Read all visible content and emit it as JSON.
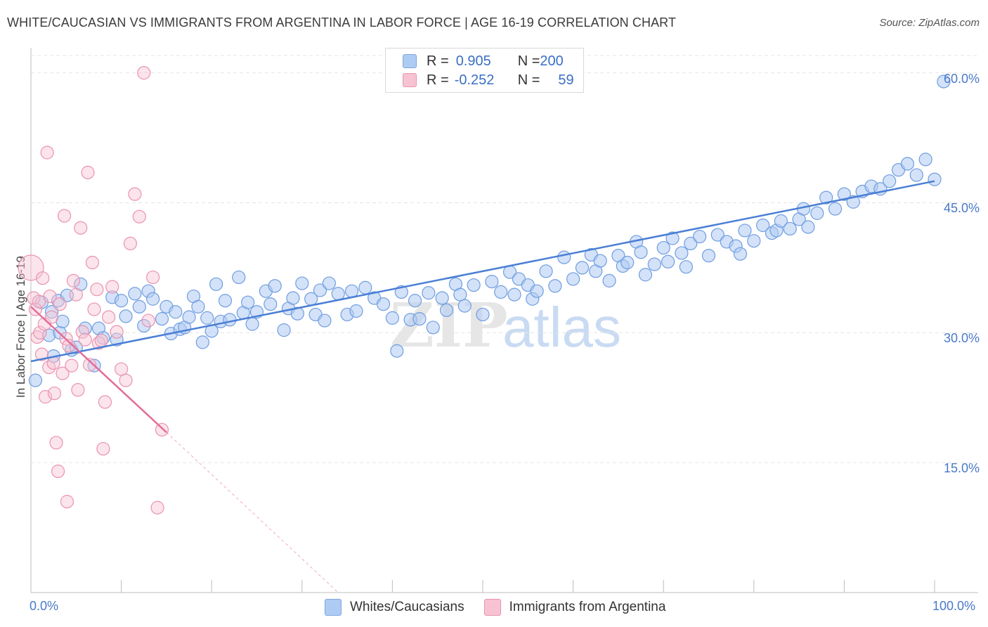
{
  "title": "WHITE/CAUCASIAN VS IMMIGRANTS FROM ARGENTINA IN LABOR FORCE | AGE 16-19 CORRELATION CHART",
  "source": "Source: ZipAtlas.com",
  "watermark": "ZIPatlas",
  "legend": {
    "rows": [
      {
        "r_label": "R = ",
        "r_value": "0.905",
        "n_label": "N = ",
        "n_value": "200",
        "color": "#a9c6f0"
      },
      {
        "r_label": "R = ",
        "r_value": "-0.252",
        "n_label": "N = ",
        "n_value": "59",
        "color": "#f5b8c9"
      }
    ]
  },
  "bottom_legend": [
    "Whites/Caucasians",
    "Immigrants from Argentina"
  ],
  "chart_data": {
    "type": "scatter",
    "ylabel": "In Labor Force | Age 16-19",
    "x_tick_labels": [
      "0.0%",
      "100.0%"
    ],
    "y_tick_labels": [
      "15.0%",
      "30.0%",
      "45.0%",
      "60.0%"
    ],
    "y_ticks": [
      15,
      30,
      45,
      60
    ],
    "xlim": [
      0,
      100
    ],
    "ylim": [
      0,
      62
    ],
    "grid": true,
    "colors": {
      "blue": "#4a7fd6",
      "blue_fill": "#aecbf3",
      "pink": "#e46e98",
      "pink_fill": "#f7c3d3",
      "axis_text": "#4a79c9"
    },
    "series": [
      {
        "name": "Whites/Caucasians",
        "trend": {
          "x": [
            0,
            100
          ],
          "y": [
            26.7,
            47.5
          ]
        },
        "points": [
          [
            0.5,
            24.5
          ],
          [
            1.2,
            33.5
          ],
          [
            2.0,
            29.7
          ],
          [
            2.3,
            32.4
          ],
          [
            2.5,
            27.3
          ],
          [
            3.0,
            33.7
          ],
          [
            3.2,
            30.0
          ],
          [
            3.5,
            31.3
          ],
          [
            4.0,
            34.3
          ],
          [
            4.5,
            28.0
          ],
          [
            5.0,
            28.3
          ],
          [
            5.5,
            35.6
          ],
          [
            6.0,
            30.5
          ],
          [
            7.0,
            26.2
          ],
          [
            7.5,
            30.5
          ],
          [
            8.0,
            29.4
          ],
          [
            9.0,
            34.1
          ],
          [
            9.5,
            29.2
          ],
          [
            10.0,
            33.7
          ],
          [
            10.5,
            31.9
          ],
          [
            11.5,
            34.5
          ],
          [
            12.0,
            33.0
          ],
          [
            12.5,
            30.8
          ],
          [
            13.0,
            34.8
          ],
          [
            13.5,
            33.9
          ],
          [
            14.5,
            31.6
          ],
          [
            15.0,
            33.0
          ],
          [
            15.5,
            29.9
          ],
          [
            16.0,
            32.4
          ],
          [
            16.5,
            30.4
          ],
          [
            17.0,
            30.6
          ],
          [
            17.5,
            31.8
          ],
          [
            18.0,
            34.2
          ],
          [
            18.5,
            33.0
          ],
          [
            19.0,
            28.9
          ],
          [
            19.5,
            31.7
          ],
          [
            20.0,
            30.2
          ],
          [
            20.5,
            35.6
          ],
          [
            21.0,
            31.3
          ],
          [
            21.5,
            33.7
          ],
          [
            22.0,
            31.5
          ],
          [
            23.0,
            36.4
          ],
          [
            23.5,
            32.3
          ],
          [
            24.0,
            33.5
          ],
          [
            24.5,
            31.0
          ],
          [
            25.0,
            32.4
          ],
          [
            26.0,
            34.8
          ],
          [
            26.5,
            33.3
          ],
          [
            27.0,
            35.4
          ],
          [
            28.0,
            30.3
          ],
          [
            28.5,
            32.8
          ],
          [
            29.0,
            34.0
          ],
          [
            29.5,
            32.2
          ],
          [
            30.0,
            35.7
          ],
          [
            31.0,
            33.9
          ],
          [
            31.5,
            32.1
          ],
          [
            32.0,
            34.9
          ],
          [
            32.5,
            31.4
          ],
          [
            33.0,
            35.7
          ],
          [
            34.0,
            34.5
          ],
          [
            35.0,
            32.1
          ],
          [
            35.5,
            34.8
          ],
          [
            36.0,
            32.5
          ],
          [
            37.0,
            35.2
          ],
          [
            38.0,
            34.0
          ],
          [
            39.0,
            33.3
          ],
          [
            40.0,
            31.7
          ],
          [
            40.5,
            27.9
          ],
          [
            41.0,
            34.7
          ],
          [
            42.0,
            31.5
          ],
          [
            42.5,
            33.7
          ],
          [
            43.0,
            31.6
          ],
          [
            44.0,
            34.6
          ],
          [
            44.5,
            30.6
          ],
          [
            45.5,
            34.0
          ],
          [
            46.0,
            32.6
          ],
          [
            47.0,
            35.6
          ],
          [
            47.5,
            34.4
          ],
          [
            48.0,
            33.1
          ],
          [
            49.0,
            35.5
          ],
          [
            50.0,
            32.1
          ],
          [
            51.0,
            35.9
          ],
          [
            52.0,
            34.7
          ],
          [
            53.0,
            37.0
          ],
          [
            53.5,
            34.4
          ],
          [
            54.0,
            36.2
          ],
          [
            55.0,
            35.5
          ],
          [
            55.5,
            33.9
          ],
          [
            56.0,
            34.8
          ],
          [
            57.0,
            37.1
          ],
          [
            58.0,
            35.4
          ],
          [
            59.0,
            38.7
          ],
          [
            60.0,
            36.2
          ],
          [
            61.0,
            37.5
          ],
          [
            62.0,
            39.0
          ],
          [
            62.5,
            37.1
          ],
          [
            63.0,
            38.3
          ],
          [
            64.0,
            36.0
          ],
          [
            65.0,
            38.9
          ],
          [
            65.5,
            37.7
          ],
          [
            66.0,
            38.1
          ],
          [
            67.0,
            40.5
          ],
          [
            67.5,
            39.3
          ],
          [
            68.0,
            36.7
          ],
          [
            69.0,
            37.9
          ],
          [
            70.0,
            39.8
          ],
          [
            70.5,
            38.2
          ],
          [
            71.0,
            40.9
          ],
          [
            72.0,
            39.2
          ],
          [
            72.5,
            37.6
          ],
          [
            73.0,
            40.3
          ],
          [
            74.0,
            41.1
          ],
          [
            75.0,
            38.9
          ],
          [
            76.0,
            41.3
          ],
          [
            77.0,
            40.5
          ],
          [
            78.0,
            40.0
          ],
          [
            78.5,
            39.1
          ],
          [
            79.0,
            41.8
          ],
          [
            80.0,
            40.6
          ],
          [
            81.0,
            42.4
          ],
          [
            82.0,
            41.5
          ],
          [
            82.5,
            41.8
          ],
          [
            83.0,
            42.9
          ],
          [
            84.0,
            42.0
          ],
          [
            85.0,
            43.1
          ],
          [
            85.5,
            44.3
          ],
          [
            86.0,
            42.2
          ],
          [
            87.0,
            43.8
          ],
          [
            88.0,
            45.6
          ],
          [
            89.0,
            44.3
          ],
          [
            90.0,
            46.0
          ],
          [
            91.0,
            45.1
          ],
          [
            92.0,
            46.3
          ],
          [
            93.0,
            46.9
          ],
          [
            94.0,
            46.6
          ],
          [
            95.0,
            47.5
          ],
          [
            96.0,
            48.8
          ],
          [
            97.0,
            49.5
          ],
          [
            98.0,
            48.2
          ],
          [
            99.0,
            50.0
          ],
          [
            100.0,
            47.7
          ],
          [
            101.0,
            59.0
          ]
        ]
      },
      {
        "name": "Immigrants from Argentina",
        "trend": {
          "x": [
            0,
            15
          ],
          "y": [
            33.0,
            18.5
          ]
        },
        "trend_extension": {
          "x": [
            15,
            34
          ],
          "y": [
            18.5,
            0
          ]
        },
        "points": [
          [
            0.0,
            37.5
          ],
          [
            0.3,
            34.0
          ],
          [
            0.5,
            32.7
          ],
          [
            0.7,
            29.5
          ],
          [
            0.9,
            33.6
          ],
          [
            1.0,
            30.0
          ],
          [
            1.2,
            27.5
          ],
          [
            1.3,
            36.3
          ],
          [
            1.5,
            31.0
          ],
          [
            1.6,
            22.6
          ],
          [
            1.8,
            50.8
          ],
          [
            2.0,
            26.0
          ],
          [
            2.1,
            34.2
          ],
          [
            2.3,
            31.8
          ],
          [
            2.5,
            26.5
          ],
          [
            2.6,
            23.0
          ],
          [
            2.8,
            17.3
          ],
          [
            3.0,
            14.0
          ],
          [
            3.2,
            33.3
          ],
          [
            3.5,
            25.3
          ],
          [
            3.7,
            43.5
          ],
          [
            3.9,
            29.3
          ],
          [
            4.0,
            10.5
          ],
          [
            4.2,
            28.5
          ],
          [
            4.5,
            26.2
          ],
          [
            4.7,
            36.0
          ],
          [
            5.0,
            34.4
          ],
          [
            5.2,
            23.4
          ],
          [
            5.5,
            42.1
          ],
          [
            5.7,
            30.1
          ],
          [
            6.0,
            29.2
          ],
          [
            6.3,
            48.5
          ],
          [
            6.5,
            26.3
          ],
          [
            6.8,
            38.1
          ],
          [
            7.0,
            32.7
          ],
          [
            7.3,
            35.0
          ],
          [
            7.5,
            28.8
          ],
          [
            7.8,
            29.1
          ],
          [
            8.0,
            16.6
          ],
          [
            8.2,
            22.0
          ],
          [
            8.6,
            31.8
          ],
          [
            9.0,
            35.3
          ],
          [
            9.5,
            30.1
          ],
          [
            10.0,
            25.8
          ],
          [
            10.5,
            24.5
          ],
          [
            11.0,
            40.3
          ],
          [
            11.5,
            46.0
          ],
          [
            12.0,
            43.4
          ],
          [
            12.5,
            60.0
          ],
          [
            13.0,
            31.4
          ],
          [
            13.5,
            36.4
          ],
          [
            14.0,
            9.8
          ],
          [
            14.5,
            18.8
          ]
        ]
      }
    ]
  }
}
